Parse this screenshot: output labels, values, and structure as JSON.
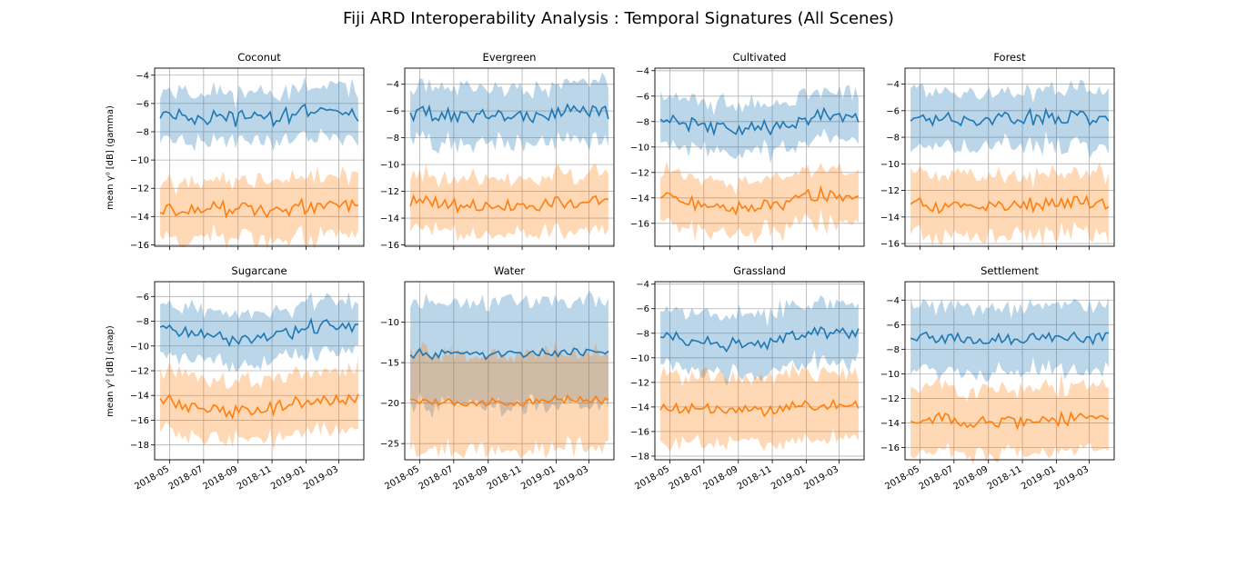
{
  "figure": {
    "title": "Fiji ARD Interoperability Analysis : Temporal Signatures (All Scenes)",
    "row_ylabels": [
      "mean γ⁰ [dB] (gamma)",
      "mean γ⁰ [dB] (snap)"
    ]
  },
  "colors": {
    "blue_line": "#1f77b4",
    "orange_line": "#ff7f0e",
    "blue_band": "#1f77b4",
    "orange_band": "#ff7f0e",
    "grid": "#b0b0b0"
  },
  "chart_data": {
    "type": "line",
    "n_points": 64,
    "date_start": "2018-04-14",
    "date_end": "2019-04-05",
    "x_ticks": [
      "2018-05",
      "2018-07",
      "2018-09",
      "2018-11",
      "2019-01",
      "2019-03"
    ],
    "series_style": "mean line with ±1 std shaded band",
    "panels": [
      {
        "title": "Coconut",
        "ylim": [
          -16.1,
          -3.5
        ],
        "yticks": [
          -4,
          -6,
          -8,
          -10,
          -12,
          -14,
          -16
        ],
        "blue": {
          "mean": -6.7,
          "std": 1.7
        },
        "orange": {
          "mean": -13.3,
          "std": 2.0
        }
      },
      {
        "title": "Evergreen",
        "ylim": [
          -16.1,
          -2.8
        ],
        "yticks": [
          -4,
          -6,
          -8,
          -10,
          -12,
          -14,
          -16
        ],
        "blue": {
          "mean": -6.1,
          "std": 2.0
        },
        "orange": {
          "mean": -12.8,
          "std": 2.0
        }
      },
      {
        "title": "Cultivated",
        "ylim": [
          -17.8,
          -3.8
        ],
        "yticks": [
          -4,
          -6,
          -8,
          -10,
          -12,
          -14,
          -16
        ],
        "blue": {
          "mean": -7.6,
          "std": 1.8
        },
        "orange": {
          "mean": -13.8,
          "std": 2.0
        }
      },
      {
        "title": "Forest",
        "ylim": [
          -16.2,
          -2.8
        ],
        "yticks": [
          -4,
          -6,
          -8,
          -10,
          -12,
          -14,
          -16
        ],
        "blue": {
          "mean": -6.4,
          "std": 2.0
        },
        "orange": {
          "mean": -12.9,
          "std": 2.2
        }
      },
      {
        "title": "Sugarcane",
        "ylim": [
          -19.2,
          -4.8
        ],
        "yticks": [
          -6,
          -8,
          -10,
          -12,
          -14,
          -16,
          -18
        ],
        "blue": {
          "mean": -8.4,
          "std": 2.0
        },
        "orange": {
          "mean": -14.2,
          "std": 2.3
        }
      },
      {
        "title": "Water",
        "ylim": [
          -27.0,
          -5.0
        ],
        "yticks": [
          -10,
          -15,
          -20,
          -25
        ],
        "blue": {
          "mean": -13.8,
          "std": 6.2
        },
        "orange": {
          "mean": -19.6,
          "std": 5.8
        }
      },
      {
        "title": "Grassland",
        "ylim": [
          -18.3,
          -3.8
        ],
        "yticks": [
          -4,
          -6,
          -8,
          -10,
          -12,
          -14,
          -16,
          -18
        ],
        "blue": {
          "mean": -7.9,
          "std": 2.3
        },
        "orange": {
          "mean": -13.9,
          "std": 2.6
        }
      },
      {
        "title": "Settlement",
        "ylim": [
          -17.0,
          -2.5
        ],
        "yticks": [
          -4,
          -6,
          -8,
          -10,
          -12,
          -14,
          -16
        ],
        "blue": {
          "mean": -7.0,
          "std": 2.6
        },
        "orange": {
          "mean": -13.6,
          "std": 2.6
        }
      }
    ]
  }
}
